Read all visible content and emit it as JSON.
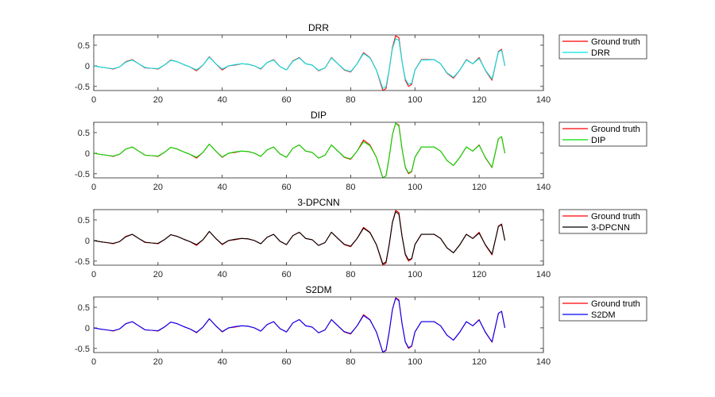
{
  "chart_data": [
    {
      "type": "line",
      "title": "DRR",
      "xlim": [
        0,
        140
      ],
      "ylim": [
        -0.6,
        0.75
      ],
      "xticks": [
        "0",
        "20",
        "40",
        "60",
        "80",
        "100",
        "120",
        "140"
      ],
      "yticks": [
        "-0.5",
        "0",
        "0.5"
      ],
      "legend_position": "outside-right",
      "series": [
        {
          "name": "Ground truth",
          "color": "#ff0000",
          "kind": "truth"
        },
        {
          "name": "DRR",
          "color": "#00e5e5",
          "kind": "est"
        }
      ]
    },
    {
      "type": "line",
      "title": "DIP",
      "xlim": [
        0,
        140
      ],
      "ylim": [
        -0.6,
        0.75
      ],
      "xticks": [
        "0",
        "20",
        "40",
        "60",
        "80",
        "100",
        "120",
        "140"
      ],
      "yticks": [
        "-0.5",
        "0",
        "0.5"
      ],
      "legend_position": "outside-right",
      "series": [
        {
          "name": "Ground truth",
          "color": "#ff0000",
          "kind": "truth"
        },
        {
          "name": "DIP",
          "color": "#00dd00",
          "kind": "est"
        }
      ]
    },
    {
      "type": "line",
      "title": "3-DPCNN",
      "xlim": [
        0,
        140
      ],
      "ylim": [
        -0.6,
        0.75
      ],
      "xticks": [
        "0",
        "20",
        "40",
        "60",
        "80",
        "100",
        "120",
        "140"
      ],
      "yticks": [
        "-0.5",
        "0",
        "0.5"
      ],
      "legend_position": "outside-right",
      "series": [
        {
          "name": "Ground truth",
          "color": "#ff0000",
          "kind": "truth"
        },
        {
          "name": "3-DPCNN",
          "color": "#000000",
          "kind": "est"
        }
      ]
    },
    {
      "type": "line",
      "title": "S2DM",
      "xlim": [
        0,
        140
      ],
      "ylim": [
        -0.6,
        0.75
      ],
      "xticks": [
        "0",
        "20",
        "40",
        "60",
        "80",
        "100",
        "120",
        "140"
      ],
      "yticks": [
        "-0.5",
        "0",
        "0.5"
      ],
      "legend_position": "outside-right",
      "series": [
        {
          "name": "Ground truth",
          "color": "#ff0000",
          "kind": "truth"
        },
        {
          "name": "S2DM",
          "color": "#0000ff",
          "kind": "est"
        }
      ]
    }
  ],
  "signal": {
    "x": [
      0,
      2,
      4,
      6,
      8,
      10,
      12,
      14,
      16,
      18,
      20,
      22,
      24,
      26,
      28,
      30,
      32,
      34,
      36,
      38,
      40,
      42,
      44,
      46,
      48,
      50,
      52,
      54,
      56,
      58,
      60,
      62,
      64,
      66,
      68,
      70,
      72,
      74,
      76,
      78,
      80,
      82,
      84,
      86,
      88,
      90,
      91,
      92,
      93,
      94,
      95,
      96,
      97,
      98,
      99,
      100,
      102,
      104,
      106,
      108,
      110,
      112,
      114,
      116,
      118,
      120,
      122,
      124,
      126,
      127,
      128
    ],
    "ground_truth": [
      0.0,
      -0.03,
      -0.05,
      -0.08,
      -0.03,
      0.1,
      0.15,
      0.05,
      -0.05,
      -0.06,
      -0.08,
      0.02,
      0.14,
      0.1,
      0.03,
      -0.03,
      -0.12,
      0.02,
      0.22,
      0.05,
      -0.1,
      0.0,
      0.02,
      0.05,
      0.04,
      0.0,
      -0.08,
      0.08,
      0.15,
      -0.02,
      -0.1,
      0.12,
      0.2,
      0.05,
      0.02,
      -0.12,
      -0.05,
      0.2,
      0.05,
      -0.1,
      -0.15,
      0.05,
      0.32,
      0.2,
      -0.1,
      -0.6,
      -0.55,
      -0.1,
      0.45,
      0.73,
      0.68,
      0.1,
      -0.35,
      -0.5,
      -0.45,
      -0.1,
      0.15,
      0.15,
      0.15,
      0.05,
      -0.18,
      -0.3,
      -0.1,
      0.15,
      0.05,
      0.2,
      -0.12,
      -0.35,
      0.35,
      0.4,
      0.0
    ],
    "estimates": [
      [
        0.0,
        -0.03,
        -0.05,
        -0.07,
        -0.03,
        0.09,
        0.14,
        0.05,
        -0.04,
        -0.06,
        -0.07,
        0.02,
        0.13,
        0.1,
        0.03,
        -0.03,
        -0.1,
        0.02,
        0.21,
        0.05,
        -0.08,
        0.0,
        0.03,
        0.05,
        0.04,
        0.0,
        -0.07,
        0.08,
        0.14,
        -0.02,
        -0.1,
        0.11,
        0.19,
        0.05,
        0.02,
        -0.11,
        -0.05,
        0.19,
        0.05,
        -0.09,
        -0.14,
        0.05,
        0.3,
        0.19,
        -0.1,
        -0.55,
        -0.5,
        -0.1,
        0.42,
        0.66,
        0.62,
        0.1,
        -0.32,
        -0.45,
        -0.42,
        -0.1,
        0.14,
        0.14,
        0.15,
        0.05,
        -0.17,
        -0.28,
        -0.1,
        0.14,
        0.05,
        0.18,
        -0.11,
        -0.32,
        0.34,
        0.38,
        0.0
      ],
      [
        0.0,
        -0.03,
        -0.05,
        -0.07,
        -0.03,
        0.1,
        0.15,
        0.05,
        -0.05,
        -0.06,
        -0.07,
        0.02,
        0.14,
        0.1,
        0.03,
        -0.03,
        -0.1,
        0.02,
        0.22,
        0.05,
        -0.09,
        0.0,
        0.03,
        0.05,
        0.04,
        0.0,
        -0.08,
        0.08,
        0.15,
        -0.02,
        -0.1,
        0.12,
        0.2,
        0.05,
        0.02,
        -0.12,
        -0.05,
        0.2,
        0.05,
        -0.09,
        -0.14,
        0.05,
        0.28,
        0.18,
        -0.1,
        -0.6,
        -0.55,
        -0.1,
        0.45,
        0.73,
        0.66,
        0.1,
        -0.34,
        -0.48,
        -0.44,
        -0.1,
        0.15,
        0.15,
        0.15,
        0.05,
        -0.18,
        -0.3,
        -0.1,
        0.15,
        0.05,
        0.19,
        -0.11,
        -0.34,
        0.35,
        0.4,
        0.0
      ],
      [
        0.0,
        -0.03,
        -0.05,
        -0.07,
        -0.03,
        0.09,
        0.15,
        0.05,
        -0.04,
        -0.06,
        -0.07,
        0.02,
        0.14,
        0.1,
        0.03,
        -0.03,
        -0.1,
        0.02,
        0.22,
        0.05,
        -0.09,
        0.0,
        0.03,
        0.05,
        0.04,
        0.0,
        -0.08,
        0.08,
        0.15,
        -0.02,
        -0.1,
        0.12,
        0.2,
        0.05,
        0.02,
        -0.12,
        -0.05,
        0.2,
        0.05,
        -0.09,
        -0.14,
        0.05,
        0.3,
        0.19,
        -0.1,
        -0.57,
        -0.52,
        -0.1,
        0.44,
        0.7,
        0.64,
        0.1,
        -0.33,
        -0.47,
        -0.44,
        -0.1,
        0.15,
        0.15,
        0.15,
        0.05,
        -0.18,
        -0.3,
        -0.1,
        0.15,
        0.05,
        0.18,
        -0.11,
        -0.33,
        0.34,
        0.39,
        0.0
      ],
      [
        0.0,
        -0.03,
        -0.05,
        -0.07,
        -0.03,
        0.1,
        0.15,
        0.05,
        -0.05,
        -0.06,
        -0.07,
        0.02,
        0.14,
        0.1,
        0.03,
        -0.03,
        -0.11,
        0.02,
        0.22,
        0.05,
        -0.09,
        0.0,
        0.03,
        0.05,
        0.04,
        0.0,
        -0.08,
        0.08,
        0.15,
        -0.02,
        -0.1,
        0.12,
        0.2,
        0.05,
        0.02,
        -0.12,
        -0.05,
        0.2,
        0.05,
        -0.09,
        -0.14,
        0.05,
        0.3,
        0.19,
        -0.1,
        -0.59,
        -0.54,
        -0.1,
        0.45,
        0.72,
        0.66,
        0.1,
        -0.34,
        -0.48,
        -0.44,
        -0.1,
        0.15,
        0.15,
        0.15,
        0.05,
        -0.18,
        -0.3,
        -0.1,
        0.15,
        0.05,
        0.19,
        -0.11,
        -0.34,
        0.35,
        0.4,
        0.0
      ]
    ]
  }
}
